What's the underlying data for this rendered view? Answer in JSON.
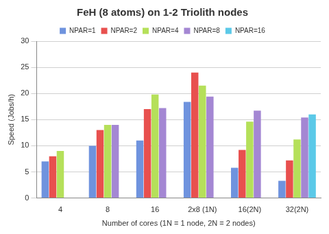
{
  "chart_data": {
    "type": "bar",
    "title": "FeH (8 atoms) on 1-2 Triolith nodes",
    "x_label": "Number of cores (1N = 1 node, 2N = 2 nodes)",
    "y_label": "Speed (Jobs/h)",
    "categories": [
      "4",
      "8",
      "16",
      "2x8 (1N)",
      "16(2N)",
      "32(2N)"
    ],
    "series": [
      {
        "name": "NPAR=1",
        "color": "#6f93de",
        "values": [
          7,
          10,
          11,
          18.4,
          5.8,
          3.3
        ]
      },
      {
        "name": "NPAR=2",
        "color": "#e8504e",
        "values": [
          8,
          13,
          17,
          24,
          9.2,
          7.2
        ]
      },
      {
        "name": "NPAR=4",
        "color": "#b5e05a",
        "values": [
          9,
          14,
          19.8,
          21.5,
          14.6,
          11.2
        ]
      },
      {
        "name": "NPAR=8",
        "color": "#a487d3",
        "values": [
          null,
          14,
          17.2,
          19.4,
          16.7,
          15.4
        ]
      },
      {
        "name": "NPAR=16",
        "color": "#5bc9e8",
        "values": [
          null,
          null,
          null,
          null,
          null,
          16
        ]
      }
    ],
    "ylim": [
      0,
      30
    ],
    "yticks": [
      0,
      5,
      10,
      15,
      20,
      25,
      30
    ],
    "grid": true,
    "legend": "top"
  }
}
